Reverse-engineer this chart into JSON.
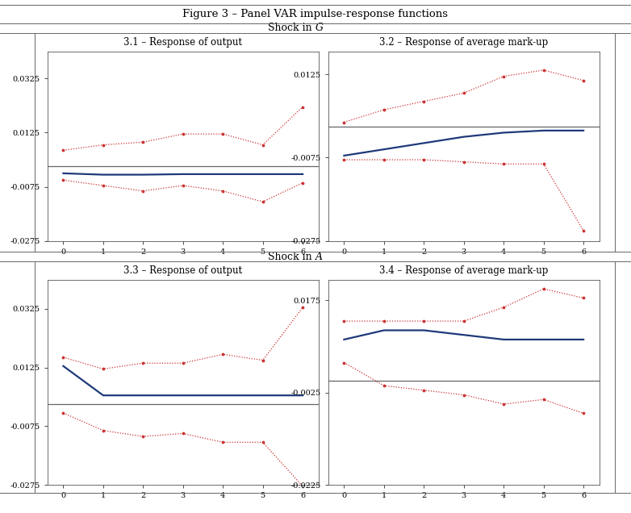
{
  "title": "Figure 3 – Panel VAR impulse-response functions",
  "shock_g_label": "Shock in ",
  "shock_g_italic": "G",
  "shock_a_label": "Shock in ",
  "shock_a_italic": "A",
  "panel_titles": [
    "3.1 – Response of output",
    "3.2 – Response of average mark-up",
    "3.3 – Response of output",
    "3.4 – Response of average mark-up"
  ],
  "x": [
    0,
    1,
    2,
    3,
    4,
    5,
    6
  ],
  "irf_31_center": [
    -0.0025,
    -0.003,
    -0.003,
    -0.0028,
    -0.0028,
    -0.0028,
    -0.0028
  ],
  "irf_31_upper": [
    0.006,
    0.008,
    0.009,
    0.012,
    0.012,
    0.008,
    0.022
  ],
  "irf_31_lower": [
    -0.005,
    -0.007,
    -0.009,
    -0.007,
    -0.009,
    -0.013,
    -0.006
  ],
  "irf_32_center": [
    -0.007,
    -0.0055,
    -0.004,
    -0.0025,
    -0.0015,
    -0.001,
    -0.001
  ],
  "irf_32_upper": [
    0.001,
    0.004,
    0.006,
    0.008,
    0.012,
    0.0135,
    0.011
  ],
  "irf_32_lower": [
    -0.008,
    -0.008,
    -0.008,
    -0.0085,
    -0.009,
    -0.009,
    -0.025
  ],
  "irf_33_center": [
    0.013,
    0.003,
    0.003,
    0.003,
    0.003,
    0.003,
    0.003
  ],
  "irf_33_upper": [
    0.016,
    0.012,
    0.014,
    0.014,
    0.017,
    0.015,
    0.033
  ],
  "irf_33_lower": [
    -0.003,
    -0.009,
    -0.011,
    -0.01,
    -0.013,
    -0.013,
    -0.028
  ],
  "irf_34_center": [
    0.009,
    0.011,
    0.011,
    0.01,
    0.009,
    0.009,
    0.009
  ],
  "irf_34_upper": [
    0.013,
    0.013,
    0.013,
    0.013,
    0.016,
    0.02,
    0.018
  ],
  "irf_34_lower": [
    0.004,
    -0.001,
    -0.002,
    -0.003,
    -0.005,
    -0.004,
    -0.007
  ],
  "ylim_31": [
    -0.0275,
    0.0425
  ],
  "ylim_32": [
    -0.0275,
    0.018
  ],
  "ylim_33": [
    -0.0275,
    0.0425
  ],
  "ylim_34": [
    -0.0225,
    0.022
  ],
  "yticks_31": [
    -0.0275,
    -0.0075,
    0.0125,
    0.0325
  ],
  "yticks_32": [
    -0.0275,
    -0.0075,
    0.0125
  ],
  "yticks_33": [
    -0.0275,
    -0.0075,
    0.0125,
    0.0325
  ],
  "yticks_34": [
    -0.0225,
    -0.0025,
    0.0175
  ],
  "center_color": "#1F3A7A",
  "band_color": "#CC3333",
  "zero_line_color": "#666666",
  "bg_color": "#ffffff"
}
